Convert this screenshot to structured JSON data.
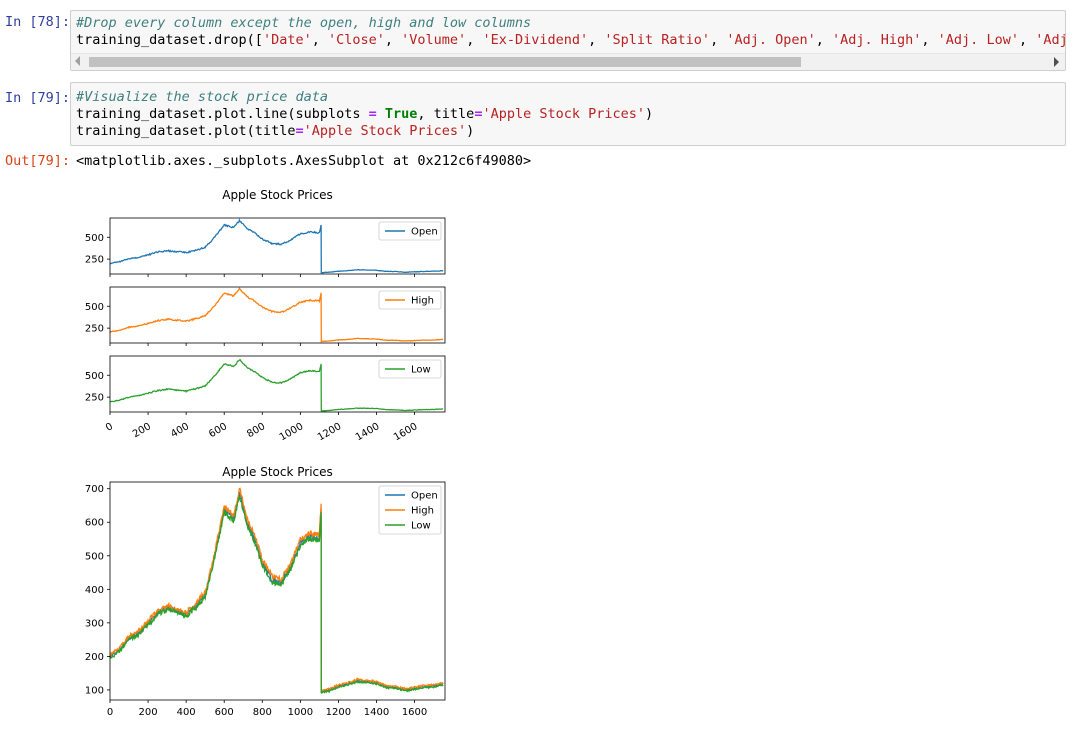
{
  "cells": [
    {
      "prompt": "In [78]:",
      "comment": "#Drop every column except the open, high and low columns",
      "code_prefix": "training_dataset.drop([",
      "code_strings": [
        "'Date'",
        "'Close'",
        "'Volume'",
        "'Ex-Dividend'",
        "'Split Ratio'",
        "'Adj. Open'",
        "'Adj. High'",
        "'Adj. Low'",
        "'Adj. Close"
      ]
    },
    {
      "prompt": "In [79]:",
      "comment": "#Visualize the stock price data",
      "line1_a": "training_dataset.plot.line(subplots ",
      "line1_eq": "=",
      "line1_kw": "True",
      "line1_b": ", title",
      "line1_eq2": "=",
      "line1_str": "'Apple Stock Prices'",
      "line1_end": ")",
      "line2_a": "training_dataset.plot(title",
      "line2_eq": "=",
      "line2_str": "'Apple Stock Prices'",
      "line2_end": ")"
    }
  ],
  "output": {
    "prompt": "Out[79]:",
    "text": "<matplotlib.axes._subplots.AxesSubplot at 0x212c6f49080>"
  },
  "colors": {
    "open": "#1f77b4",
    "high": "#ff7f0e",
    "low": "#2ca02c"
  },
  "chart_data": [
    {
      "type": "line",
      "title": "Apple Stock Prices",
      "subplots": true,
      "legend_position": "upper-right",
      "xlim": [
        0,
        1760
      ],
      "x_ticks": [
        0,
        200,
        400,
        600,
        800,
        1000,
        1200,
        1400,
        1600
      ],
      "x_tick_labels": [
        "0",
        "200",
        "400",
        "600",
        "800",
        "1000",
        "1200",
        "1400",
        "1600"
      ],
      "y_ticks": [
        250,
        500
      ],
      "y_tick_labels": [
        "250",
        "500"
      ],
      "ylim": [
        80,
        720
      ],
      "x": [
        0,
        50,
        100,
        150,
        200,
        250,
        300,
        350,
        400,
        450,
        500,
        550,
        600,
        650,
        680,
        720,
        760,
        800,
        850,
        900,
        950,
        1000,
        1050,
        1100,
        1109,
        1110,
        1150,
        1200,
        1250,
        1300,
        1350,
        1400,
        1450,
        1500,
        1550,
        1600,
        1650,
        1700,
        1750
      ],
      "series": [
        {
          "name": "Open",
          "values": [
            200,
            220,
            255,
            270,
            300,
            330,
            345,
            335,
            325,
            350,
            385,
            500,
            640,
            610,
            690,
            600,
            550,
            480,
            430,
            420,
            470,
            540,
            560,
            550,
            640,
            95,
            100,
            112,
            118,
            128,
            125,
            122,
            110,
            108,
            100,
            105,
            110,
            112,
            118
          ]
        },
        {
          "name": "High",
          "values": [
            205,
            225,
            260,
            275,
            305,
            335,
            352,
            340,
            330,
            356,
            392,
            508,
            650,
            618,
            702,
            610,
            560,
            490,
            440,
            430,
            478,
            548,
            568,
            560,
            655,
            98,
            103,
            115,
            121,
            132,
            128,
            125,
            113,
            111,
            103,
            108,
            113,
            115,
            121
          ]
        },
        {
          "name": "Low",
          "values": [
            195,
            215,
            250,
            265,
            295,
            325,
            340,
            330,
            320,
            345,
            378,
            492,
            630,
            602,
            680,
            592,
            540,
            472,
            422,
            412,
            462,
            532,
            552,
            542,
            630,
            92,
            97,
            109,
            115,
            124,
            122,
            119,
            107,
            105,
            97,
            102,
            107,
            109,
            115
          ]
        }
      ]
    },
    {
      "type": "line",
      "title": "Apple Stock Prices",
      "subplots": false,
      "legend_position": "upper-right",
      "xlim": [
        0,
        1760
      ],
      "ylim": [
        70,
        720
      ],
      "x_ticks": [
        0,
        200,
        400,
        600,
        800,
        1000,
        1200,
        1400,
        1600
      ],
      "x_tick_labels": [
        "0",
        "200",
        "400",
        "600",
        "800",
        "1000",
        "1200",
        "1400",
        "1600"
      ],
      "y_ticks": [
        100,
        200,
        300,
        400,
        500,
        600,
        700
      ],
      "y_tick_labels": [
        "100",
        "200",
        "300",
        "400",
        "500",
        "600",
        "700"
      ],
      "series_ref": "same as chart_data[0].series"
    }
  ]
}
